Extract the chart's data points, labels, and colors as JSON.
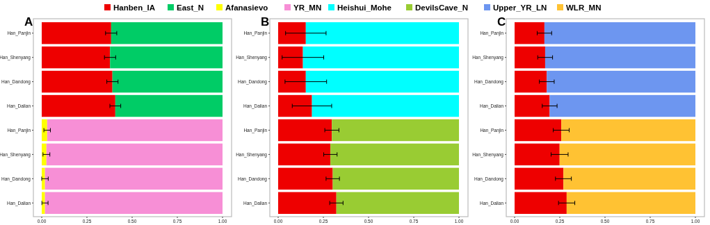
{
  "chart_data": [
    {
      "type": "bar",
      "orientation": "horizontal",
      "stacked": true,
      "title": "A",
      "legend": "top",
      "categories": [
        "Han_Panjin",
        "Han_Shenyang",
        "Han_Dandong",
        "Han_Dalian",
        "Han_Panjin",
        "Han_Shenyang",
        "Han_Dandong",
        "Han_Dalian"
      ],
      "xlim": [
        0,
        1
      ],
      "xticks": [
        {
          "value": 0,
          "label": "0.00"
        },
        {
          "value": 0.25,
          "label": "0.25"
        },
        {
          "value": 0.5,
          "label": "0.50"
        },
        {
          "value": 0.75,
          "label": "0.75"
        },
        {
          "value": 1,
          "label": "1.00"
        }
      ],
      "series": [
        {
          "name": "Hanben_IA",
          "color": "#ee0000",
          "values": [
            0.384,
            0.378,
            0.391,
            0.407,
            null,
            null,
            null,
            null
          ],
          "errors": [
            0.031,
            0.031,
            0.031,
            0.03,
            null,
            null,
            null,
            null
          ]
        },
        {
          "name": "East_N",
          "color": "#00cc66",
          "values": [
            0.616,
            0.622,
            0.609,
            0.593,
            null,
            null,
            null,
            null
          ]
        },
        {
          "name": "Afanasievo",
          "color": "#ffff00",
          "values": [
            null,
            null,
            null,
            null,
            0.03,
            0.026,
            0.018,
            0.018
          ],
          "errors": [
            null,
            null,
            null,
            null,
            0.018,
            0.019,
            0.018,
            0.017
          ]
        },
        {
          "name": "YR_MN",
          "color": "#f78fd6",
          "values": [
            null,
            null,
            null,
            null,
            0.97,
            0.974,
            0.982,
            0.982
          ]
        }
      ]
    },
    {
      "type": "bar",
      "orientation": "horizontal",
      "stacked": true,
      "title": "B",
      "legend": "top",
      "categories": [
        "Han_Panjin",
        "Han_Shenyang",
        "Han_Dandong",
        "Han_Dalian",
        "Han_Panjin",
        "Han_Shenyang",
        "Han_Dandong",
        "Han_Dalian"
      ],
      "xlim": [
        0,
        1
      ],
      "xticks": [
        {
          "value": 0,
          "label": "0.00"
        },
        {
          "value": 0.25,
          "label": "0.25"
        },
        {
          "value": 0.5,
          "label": "0.50"
        },
        {
          "value": 0.75,
          "label": "0.75"
        },
        {
          "value": 1,
          "label": "1.00"
        }
      ],
      "series": [
        {
          "name": "Hanben_IA",
          "color": "#ee0000",
          "values": [
            0.153,
            0.137,
            0.153,
            0.187,
            0.297,
            0.289,
            0.302,
            0.322
          ],
          "errors": [
            0.112,
            0.115,
            0.115,
            0.109,
            0.039,
            0.037,
            0.037,
            0.037
          ]
        },
        {
          "name": "Heishui_Mohe",
          "color": "#00ffff",
          "values": [
            0.847,
            0.863,
            0.847,
            0.813,
            null,
            null,
            null,
            null
          ]
        },
        {
          "name": "DevilsCave_N",
          "color": "#99cc33",
          "values": [
            null,
            null,
            null,
            null,
            0.703,
            0.711,
            0.698,
            0.678
          ]
        }
      ]
    },
    {
      "type": "bar",
      "orientation": "horizontal",
      "stacked": true,
      "title": "C",
      "legend": "top",
      "categories": [
        "Han_Panjin",
        "Han_Shenyang",
        "Han_Dandong",
        "Han_Dalian",
        "Han_Panjin",
        "Han_Shenyang",
        "Han_Dandong",
        "Han_Dalian"
      ],
      "xlim": [
        0,
        1
      ],
      "xticks": [
        {
          "value": 0,
          "label": "0.00"
        },
        {
          "value": 0.25,
          "label": "0.25"
        },
        {
          "value": 0.5,
          "label": "0.50"
        },
        {
          "value": 0.75,
          "label": "0.75"
        },
        {
          "value": 1,
          "label": "1.00"
        }
      ],
      "series": [
        {
          "name": "Hanben_IA",
          "color": "#ee0000",
          "values": [
            0.165,
            0.169,
            0.178,
            0.194,
            0.258,
            0.249,
            0.27,
            0.288
          ],
          "errors": [
            0.04,
            0.041,
            0.041,
            0.041,
            0.044,
            0.047,
            0.044,
            0.045
          ]
        },
        {
          "name": "Upper_YR_LN",
          "color": "#6d96f0",
          "values": [
            0.835,
            0.831,
            0.822,
            0.806,
            null,
            null,
            null,
            null
          ]
        },
        {
          "name": "WLR_MN",
          "color": "#ffc233",
          "values": [
            null,
            null,
            null,
            null,
            0.742,
            0.751,
            0.73,
            0.712
          ]
        }
      ]
    }
  ]
}
